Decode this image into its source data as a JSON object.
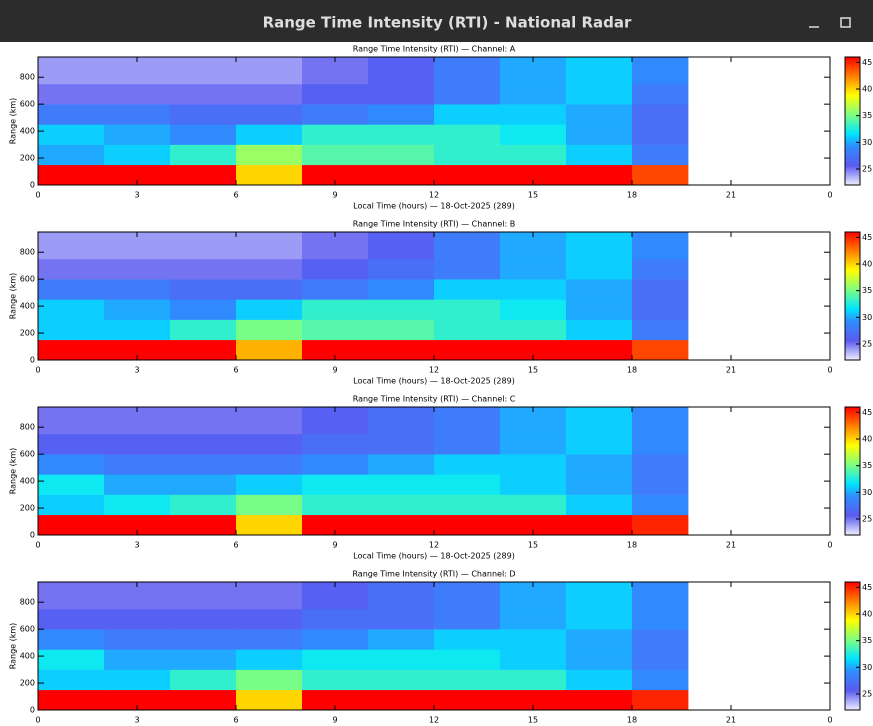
{
  "window": {
    "title": "Range Time Intensity (RTI) - National Radar"
  },
  "chart_data": [
    {
      "type": "heatmap",
      "title": "Range Time Intensity (RTI) — Channel: A",
      "xlabel": "Local Time (hours) — 18-Oct-2025 (289)",
      "ylabel": "Range (km)",
      "xbins": [
        0,
        2,
        4,
        6,
        8,
        10,
        12,
        14,
        16,
        18,
        19.7
      ],
      "ybins": [
        0,
        150,
        300,
        450,
        600,
        750,
        950
      ],
      "values": [
        [
          46,
          46,
          46,
          40,
          46,
          46,
          46,
          46,
          46,
          44
        ],
        [
          30,
          31,
          33,
          36,
          34,
          34,
          33,
          33,
          31,
          28
        ],
        [
          31,
          30,
          29,
          31,
          33,
          33,
          33,
          32,
          30,
          27
        ],
        [
          28,
          28,
          27,
          27,
          28,
          29,
          31,
          31,
          30,
          27
        ],
        [
          25,
          25,
          25,
          25,
          26,
          26,
          28,
          30,
          31,
          28
        ],
        [
          24,
          24,
          24,
          24,
          25,
          26,
          28,
          30,
          31,
          29
        ]
      ],
      "xlim": [
        0,
        24
      ],
      "ylim": [
        0,
        950
      ],
      "xticks": [
        0,
        3,
        6,
        9,
        12,
        15,
        18,
        21,
        {
          "value": 24,
          "label": "0"
        }
      ],
      "yticks": [
        0,
        200,
        400,
        600,
        800
      ],
      "clim": [
        22,
        46
      ],
      "cticks": [
        25,
        30,
        35,
        40,
        45
      ]
    },
    {
      "type": "heatmap",
      "title": "Range Time Intensity (RTI) — Channel: B",
      "xlabel": "Local Time (hours) — 18-Oct-2025 (289)",
      "ylabel": "Range (km)",
      "xbins": [
        0,
        2,
        4,
        6,
        8,
        10,
        12,
        14,
        16,
        18,
        19.7
      ],
      "ybins": [
        0,
        150,
        300,
        450,
        600,
        750,
        950
      ],
      "values": [
        [
          46,
          46,
          46,
          41,
          46,
          46,
          46,
          46,
          46,
          44
        ],
        [
          31,
          31,
          33,
          35,
          34,
          34,
          33,
          33,
          31,
          28
        ],
        [
          31,
          30,
          29,
          31,
          33,
          33,
          33,
          32,
          30,
          27
        ],
        [
          28,
          28,
          27,
          27,
          28,
          29,
          31,
          31,
          30,
          27
        ],
        [
          25,
          25,
          25,
          25,
          26,
          27,
          28,
          30,
          31,
          28
        ],
        [
          24,
          24,
          24,
          24,
          25,
          26,
          28,
          30,
          31,
          29
        ]
      ],
      "xlim": [
        0,
        24
      ],
      "ylim": [
        0,
        950
      ],
      "xticks": [
        0,
        3,
        6,
        9,
        12,
        15,
        18,
        21,
        {
          "value": 24,
          "label": "0"
        }
      ],
      "yticks": [
        0,
        200,
        400,
        600,
        800
      ],
      "clim": [
        22,
        46
      ],
      "cticks": [
        25,
        30,
        35,
        40,
        45
      ]
    },
    {
      "type": "heatmap",
      "title": "Range Time Intensity (RTI) — Channel: C",
      "xlabel": "Local Time (hours) — 18-Oct-2025 (289)",
      "ylabel": "Range (km)",
      "xbins": [
        0,
        2,
        4,
        6,
        8,
        10,
        12,
        14,
        16,
        18,
        19.7
      ],
      "ybins": [
        0,
        150,
        300,
        450,
        600,
        750,
        950
      ],
      "values": [
        [
          46,
          46,
          46,
          40,
          46,
          46,
          46,
          46,
          46,
          45
        ],
        [
          31,
          32,
          33,
          35,
          33,
          33,
          33,
          33,
          31,
          29
        ],
        [
          32,
          30,
          30,
          31,
          32,
          32,
          32,
          31,
          30,
          28
        ],
        [
          29,
          28,
          28,
          28,
          29,
          30,
          31,
          31,
          30,
          28
        ],
        [
          26,
          26,
          26,
          26,
          27,
          27,
          28,
          30,
          31,
          29
        ],
        [
          25,
          25,
          25,
          25,
          26,
          27,
          28,
          30,
          31,
          29
        ]
      ],
      "xlim": [
        0,
        24
      ],
      "ylim": [
        0,
        950
      ],
      "xticks": [
        0,
        3,
        6,
        9,
        12,
        15,
        18,
        21,
        {
          "value": 24,
          "label": "0"
        }
      ],
      "yticks": [
        0,
        200,
        400,
        600,
        800
      ],
      "clim": [
        22,
        46
      ],
      "cticks": [
        25,
        30,
        35,
        40,
        45
      ]
    },
    {
      "type": "heatmap",
      "title": "Range Time Intensity (RTI) — Channel: D",
      "ylabel": "Range (km)",
      "xbins": [
        0,
        2,
        4,
        6,
        8,
        10,
        12,
        14,
        16,
        18,
        19.7
      ],
      "ybins": [
        0,
        150,
        300,
        450,
        600,
        750,
        950
      ],
      "values": [
        [
          46,
          46,
          46,
          40,
          46,
          46,
          46,
          46,
          46,
          45
        ],
        [
          31,
          31,
          33,
          35,
          33,
          33,
          33,
          33,
          31,
          29
        ],
        [
          32,
          30,
          30,
          31,
          32,
          32,
          32,
          31,
          30,
          28
        ],
        [
          29,
          28,
          28,
          28,
          29,
          30,
          31,
          31,
          30,
          28
        ],
        [
          26,
          26,
          26,
          26,
          27,
          27,
          28,
          30,
          31,
          29
        ],
        [
          25,
          25,
          25,
          25,
          26,
          27,
          28,
          30,
          31,
          29
        ]
      ],
      "xlim": [
        0,
        24
      ],
      "ylim": [
        0,
        950
      ],
      "xticks": [
        0,
        3,
        6,
        9,
        12,
        15,
        18,
        21,
        {
          "value": 24,
          "label": "0"
        }
      ],
      "yticks": [
        0,
        200,
        400,
        600,
        800
      ],
      "clim": [
        22,
        46
      ],
      "cticks": [
        25,
        30,
        35,
        40,
        45
      ]
    }
  ]
}
